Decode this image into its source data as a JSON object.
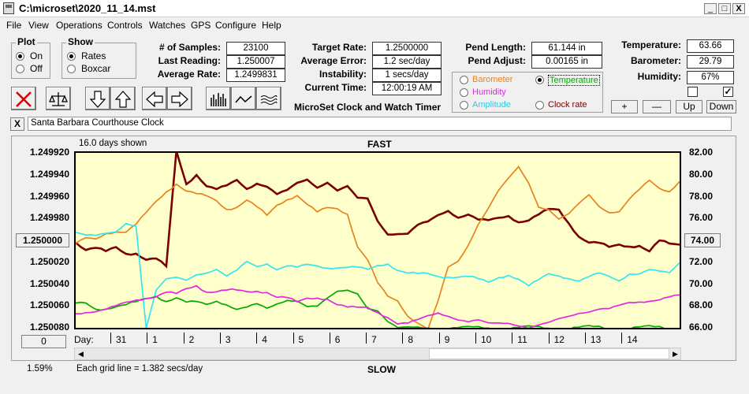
{
  "window": {
    "title": "C:\\microset\\2020_11_14.mst",
    "minimize": "_",
    "maximize": "□",
    "close": "X"
  },
  "menu": [
    "File",
    "View",
    "Operations",
    "Controls",
    "Watches",
    "GPS",
    "Configure",
    "Help"
  ],
  "plot_group": {
    "title": "Plot",
    "on": "On",
    "off": "Off"
  },
  "show_group": {
    "title": "Show",
    "rates": "Rates",
    "boxcar": "Boxcar"
  },
  "stats": {
    "samples_label": "# of Samples:",
    "samples": "23100",
    "last_label": "Last Reading:",
    "last": "1.250007",
    "avg_label": "Average Rate:",
    "avg": "1.2499831",
    "target_label": "Target Rate:",
    "target": "1.2500000",
    "averr_label": "Average Error:",
    "averr": "1.2 sec/day",
    "instab_label": "Instability:",
    "instab": "1 secs/day",
    "time_label": "Current Time:",
    "time": "12:00:19 AM",
    "pend_len_label": "Pend Length:",
    "pend_len": "61.144 in",
    "pend_adj_label": "Pend Adjust:",
    "pend_adj": "0.00165 in",
    "temp_label": "Temperature:",
    "temp": "63.66",
    "baro_label": "Barometer:",
    "baro": "29.79",
    "hum_label": "Humidity:",
    "hum": "67%"
  },
  "app_name": "MicroSet Clock and Watch Timer",
  "overlay": {
    "barometer": "Barometer",
    "temperature": "Temperature",
    "humidity": "Humidity",
    "amplitude": "Amplitude",
    "clock_rate": "Clock rate"
  },
  "small_buttons": {
    "plus": "+",
    "minus": "—",
    "up": "Up",
    "down": "Down"
  },
  "watch_name": "Santa Barbara Courthouse Clock",
  "watch_close": "X",
  "chart_data": {
    "type": "line",
    "top_left_label": "16.0 days shown",
    "top_label": "FAST",
    "bottom_label": "SLOW",
    "grid_note": "Each grid line = 1.382 secs/day",
    "percent": "1.59%",
    "left_axis_ticks": [
      "1.249920",
      "1.249940",
      "1.249960",
      "1.249980",
      "1.250000",
      "1.250020",
      "1.250040",
      "1.250060",
      "1.250080"
    ],
    "left_axis_selected": "1.250000",
    "right_axis_ticks": [
      "82.00",
      "80.00",
      "78.00",
      "76.00",
      "74.00",
      "72.00",
      "70.00",
      "68.00",
      "66.00"
    ],
    "right_axis_selected": "74.00",
    "x_label": "Day:",
    "x_ticks": [
      "31",
      "1",
      "2",
      "3",
      "4",
      "5",
      "6",
      "7",
      "8",
      "9",
      "10",
      "11",
      "12",
      "13",
      "14"
    ],
    "zero_button": "0",
    "ylim_left": [
      1.24992,
      1.25008
    ],
    "ylim_right": [
      66,
      82
    ],
    "series": [
      {
        "color": "#7a0000",
        "values": [
          73.8,
          73.3,
          73.5,
          73.0,
          73.2,
          72.6,
          72.8,
          72.4,
          72.5,
          71.6,
          82,
          79,
          80,
          79.1,
          78.8,
          79.0,
          79.4,
          78.6,
          79.2,
          79.0,
          78.3,
          78.6,
          79.2,
          79.5,
          78.8,
          79.3,
          78.6,
          79.0,
          77.9,
          77.8,
          75.7,
          74.5,
          74.6,
          74.7,
          75.5,
          75.7,
          76.2,
          76.6,
          76.1,
          76.5,
          76.0,
          75.8,
          75.9,
          76.1,
          75.7,
          76.0,
          76.5,
          76.8,
          76.6,
          75.4,
          74.4,
          74.0,
          73.9,
          73.3,
          73.4,
          73.3,
          73.6,
          73.2,
          74.1,
          73.6,
          73.4
        ]
      },
      {
        "color": "#e8821e",
        "values": [
          73.8,
          74.2,
          74.0,
          74.5,
          74.8,
          74.9,
          75.6,
          76.5,
          77.4,
          78.3,
          79.2,
          78.7,
          78.4,
          78.0,
          77.4,
          76.7,
          77.1,
          77.9,
          77.2,
          76.2,
          77.0,
          77.6,
          78.2,
          77.5,
          76.7,
          76.9,
          76.7,
          76.3,
          73.5,
          72.4,
          70.2,
          68.8,
          68.3,
          67.0,
          66.5,
          66.0,
          68.5,
          71.5,
          72.0,
          73.5,
          75.5,
          77.0,
          78.6,
          79.7,
          80.7,
          79.2,
          77.0,
          76.8,
          76.0,
          76.5,
          77.4,
          78.1,
          77.0,
          76.5,
          76.7,
          77.9,
          78.7,
          79.4,
          78.6,
          78.4,
          79.5
        ]
      },
      {
        "color": "#33e6f2",
        "values": [
          74.8,
          74.6,
          74.5,
          74.6,
          74.7,
          75.5,
          75.3,
          66,
          69.5,
          70.5,
          70.6,
          70.3,
          70.8,
          71.0,
          71.4,
          70.8,
          71.3,
          72.0,
          71.5,
          71.8,
          71.4,
          71.8,
          71.6,
          71.7,
          71.5,
          71.4,
          71.6,
          71.7,
          71.6,
          71.2,
          71.5,
          71.8,
          71.4,
          71.2,
          71.0,
          70.8,
          70.5,
          70.6,
          70.8,
          70.9,
          70.5,
          70.0,
          70.4,
          70.8,
          70.6,
          70.0,
          70.4,
          70.8,
          70.6,
          70.5,
          70.4,
          70.8,
          71.0,
          70.6,
          70.2,
          70.9,
          71.0,
          71.4,
          71.2,
          71.0,
          71.9
        ]
      },
      {
        "color": "#00aa00",
        "values": [
          68.3,
          68.1,
          67.5,
          67.7,
          68.1,
          68.3,
          68.4,
          68.5,
          68.7,
          68.4,
          68.9,
          68.5,
          68.4,
          68.0,
          68.3,
          68.1,
          67.8,
          68.0,
          68.2,
          67.7,
          68.1,
          68.5,
          68.5,
          68.0,
          68.0,
          68.7,
          69.3,
          69.4,
          69.1,
          67.8,
          67.6,
          66.6,
          66,
          66,
          66,
          66,
          66,
          66,
          66,
          66,
          66,
          66,
          66,
          66,
          66,
          66,
          66,
          66,
          66,
          66,
          66,
          66,
          66,
          66,
          66,
          66,
          66,
          66,
          66,
          66,
          66
        ]
      },
      {
        "color": "#e028e0",
        "values": [
          67.2,
          67.4,
          67.6,
          67.8,
          68.0,
          68.2,
          68.4,
          68.7,
          69.0,
          69.4,
          69.1,
          69.4,
          69.7,
          69.3,
          69.5,
          69.6,
          69.4,
          69.1,
          69.2,
          69.3,
          69.0,
          68.9,
          68.3,
          68.5,
          68.6,
          68.7,
          68.3,
          68.0,
          67.8,
          67.7,
          67.3,
          67.0,
          66.5,
          66.5,
          66.7,
          67.0,
          67.3,
          67.1,
          66.8,
          66.6,
          66.7,
          66.4,
          66.4,
          66.4,
          66.2,
          66.0,
          66.3,
          66.5,
          66.8,
          67.0,
          67.3,
          67.5,
          67.8,
          67.8,
          68.0,
          68.2,
          68.3,
          68.5,
          68.7,
          68.9,
          68.9
        ]
      }
    ]
  }
}
